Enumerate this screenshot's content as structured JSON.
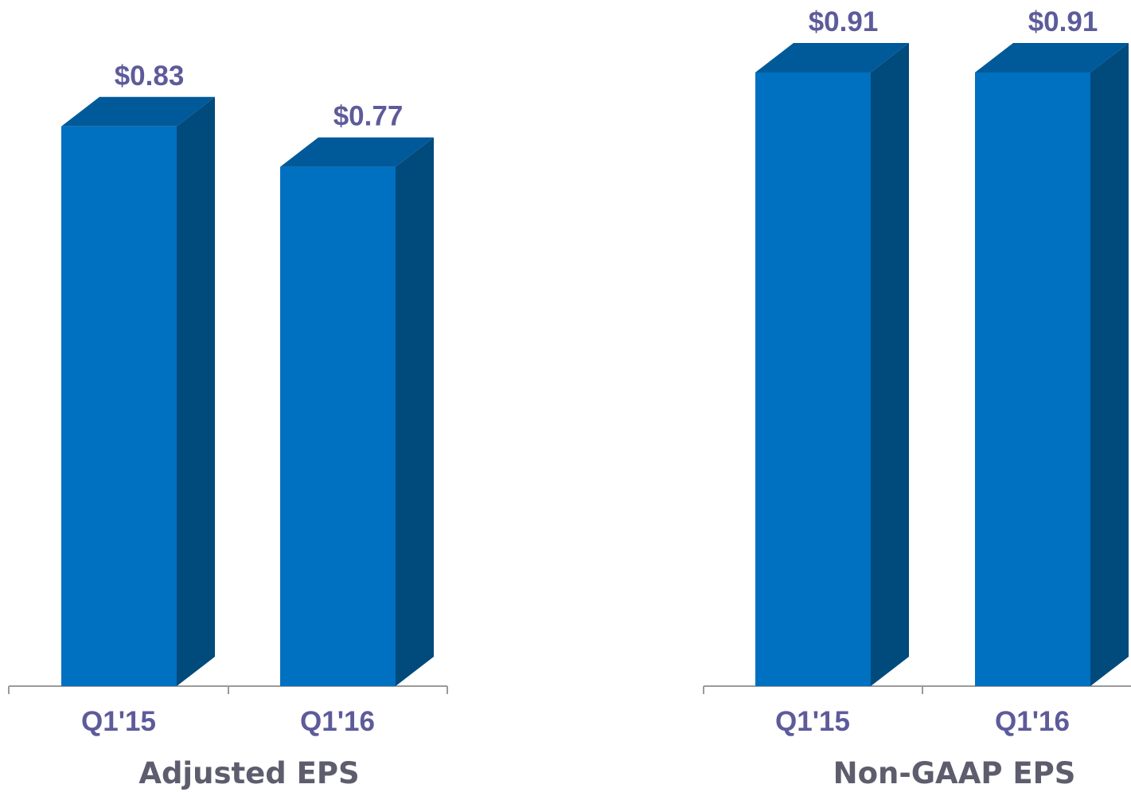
{
  "colors": {
    "bar_front": "#0070c0",
    "bar_side": "#004a7c",
    "bar_top": "#005a99",
    "label_text": "#5d5b9a",
    "title_text": "#5d5d6e",
    "axis": "#9a9a9a"
  },
  "chart_data": [
    {
      "type": "bar",
      "title": "Adjusted EPS",
      "categories": [
        "Q1'15",
        "Q1'16"
      ],
      "values": [
        0.83,
        0.77
      ],
      "value_labels": [
        "$0.83",
        "$0.77"
      ],
      "ylim": [
        0,
        0.92
      ]
    },
    {
      "type": "bar",
      "title": "Non-GAAP EPS",
      "categories": [
        "Q1'15",
        "Q1'16"
      ],
      "values": [
        0.91,
        0.91
      ],
      "value_labels": [
        "$0.91",
        "$0.91"
      ],
      "ylim": [
        0,
        0.92
      ]
    }
  ]
}
